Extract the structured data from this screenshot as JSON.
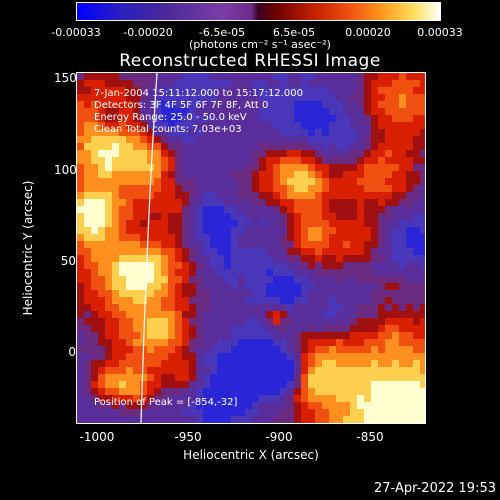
{
  "colorbar": {
    "ticks": [
      "-0.00033",
      "-0.00020",
      "-6.5e-05",
      "6.5e-05",
      "0.00020",
      "0.00033"
    ],
    "units": "(photons cm⁻² s⁻¹ asec⁻²)"
  },
  "title": "Reconstructed RHESSI Image",
  "info": {
    "time": "7-Jan-2004 15:11:12.000 to 15:17:12.000",
    "detectors": "Detectors: 3F 4F 5F 6F 7F 8F, Att 0",
    "energy": "Energy Range: 25.0 - 50.0 keV",
    "clean": "Clean    Total counts: 7.03e+03",
    "peak": "Position of Peak = [-854,-32]"
  },
  "axes": {
    "xlabel": "Heliocentric X (arcsec)",
    "ylabel": "Heliocentric Y (arcsec)",
    "xticks": [
      "-1000",
      "-950",
      "-900",
      "-850"
    ],
    "yticks": [
      "150",
      "100",
      "50",
      "0"
    ]
  },
  "timestamp": "27-Apr-2022 19:53"
}
